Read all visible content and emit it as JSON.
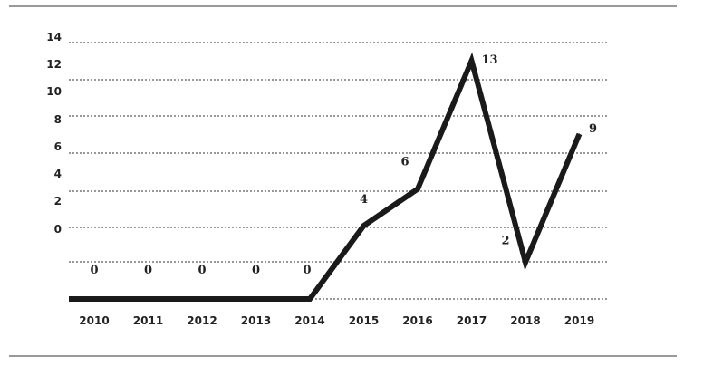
{
  "chart_data": {
    "type": "line",
    "categories": [
      "2010",
      "2011",
      "2012",
      "2013",
      "2014",
      "2015",
      "2016",
      "2017",
      "2018",
      "2019"
    ],
    "values": [
      0,
      0,
      0,
      0,
      0,
      4,
      6,
      13,
      2,
      9
    ],
    "y_tick_labels": [
      "14",
      "12",
      "10",
      "8",
      "6",
      "4",
      "2",
      "0"
    ],
    "data_labels": [
      "0",
      "0",
      "0",
      "0",
      "0",
      "4",
      "6",
      "13",
      "2",
      "9"
    ],
    "grid": true,
    "colors": {
      "line": "#1a1a1a",
      "grid": "#333333",
      "rule": "#333333",
      "text": "#222222"
    }
  }
}
